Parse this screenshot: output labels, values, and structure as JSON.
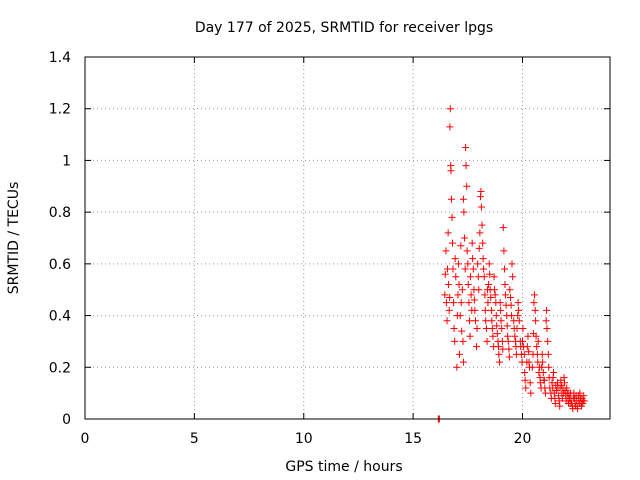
{
  "chart_data": {
    "type": "scatter",
    "title": "Day 177 of 2025, SRMTID for receiver lpgs",
    "xlabel": "GPS time / hours",
    "ylabel": "SRMTID / TECUs",
    "xlim": [
      0,
      24
    ],
    "ylim": [
      0,
      1.4
    ],
    "x_ticks": [
      0,
      5,
      10,
      15,
      20
    ],
    "x_tick_labels": [
      "0",
      "5",
      "10",
      "15",
      "20"
    ],
    "y_ticks": [
      0,
      0.2,
      0.4,
      0.6,
      0.8,
      1.0,
      1.2,
      1.4
    ],
    "y_tick_labels": [
      "0",
      "0.2",
      "0.4",
      "0.6",
      "0.8",
      "1",
      "1.2",
      "1.4"
    ],
    "grid": true,
    "marker": "plus",
    "color": "#ff0000",
    "series": [
      {
        "name": "lpgs",
        "points": [
          [
            16.15,
            0.0
          ],
          [
            16.18,
            0.0
          ],
          [
            16.2,
            0.0
          ],
          [
            16.45,
            0.48
          ],
          [
            16.47,
            0.56
          ],
          [
            16.5,
            0.65
          ],
          [
            16.52,
            0.45
          ],
          [
            16.55,
            0.38
          ],
          [
            16.57,
            0.58
          ],
          [
            16.6,
            0.72
          ],
          [
            16.62,
            0.52
          ],
          [
            16.65,
            0.42
          ],
          [
            16.67,
            0.47
          ],
          [
            16.68,
            1.13
          ],
          [
            16.7,
            1.2
          ],
          [
            16.72,
            0.98
          ],
          [
            16.73,
            0.96
          ],
          [
            16.75,
            0.85
          ],
          [
            16.78,
            0.78
          ],
          [
            16.8,
            0.68
          ],
          [
            16.82,
            0.58
          ],
          [
            16.85,
            0.45
          ],
          [
            16.87,
            0.35
          ],
          [
            16.9,
            0.3
          ],
          [
            16.92,
            0.62
          ],
          [
            16.95,
            0.55
          ],
          [
            17.0,
            0.2
          ],
          [
            17.02,
            0.4
          ],
          [
            17.05,
            0.48
          ],
          [
            17.07,
            0.6
          ],
          [
            17.1,
            0.52
          ],
          [
            17.12,
            0.25
          ],
          [
            17.15,
            0.4
          ],
          [
            17.18,
            0.67
          ],
          [
            17.2,
            0.45
          ],
          [
            17.22,
            0.34
          ],
          [
            17.25,
            0.5
          ],
          [
            17.28,
            0.3
          ],
          [
            17.3,
            0.22
          ],
          [
            17.3,
            0.85
          ],
          [
            17.32,
            0.8
          ],
          [
            17.35,
            0.7
          ],
          [
            17.38,
            0.58
          ],
          [
            17.4,
            1.05
          ],
          [
            17.42,
            0.98
          ],
          [
            17.45,
            0.9
          ],
          [
            17.47,
            0.65
          ],
          [
            17.5,
            0.6
          ],
          [
            17.52,
            0.52
          ],
          [
            17.55,
            0.45
          ],
          [
            17.58,
            0.38
          ],
          [
            17.6,
            0.32
          ],
          [
            17.62,
            0.55
          ],
          [
            17.65,
            0.48
          ],
          [
            17.68,
            0.42
          ],
          [
            17.7,
            0.68
          ],
          [
            17.72,
            0.62
          ],
          [
            17.75,
            0.58
          ],
          [
            17.78,
            0.5
          ],
          [
            17.8,
            0.46
          ],
          [
            17.82,
            0.42
          ],
          [
            17.85,
            0.38
          ],
          [
            17.9,
            0.28
          ],
          [
            17.92,
            0.35
          ],
          [
            17.95,
            0.6
          ],
          [
            17.98,
            0.55
          ],
          [
            18.0,
            0.5
          ],
          [
            18.02,
            0.66
          ],
          [
            18.05,
            0.72
          ],
          [
            18.08,
            0.86
          ],
          [
            18.1,
            0.88
          ],
          [
            18.12,
            0.82
          ],
          [
            18.15,
            0.75
          ],
          [
            18.18,
            0.68
          ],
          [
            18.2,
            0.62
          ],
          [
            18.22,
            0.58
          ],
          [
            18.25,
            0.55
          ],
          [
            18.28,
            0.48
          ],
          [
            18.3,
            0.42
          ],
          [
            18.32,
            0.38
          ],
          [
            18.35,
            0.35
          ],
          [
            18.38,
            0.3
          ],
          [
            18.4,
            0.5
          ],
          [
            18.42,
            0.45
          ],
          [
            18.45,
            0.52
          ],
          [
            18.48,
            0.6
          ],
          [
            18.5,
            0.56
          ],
          [
            18.52,
            0.5
          ],
          [
            18.55,
            0.47
          ],
          [
            18.58,
            0.42
          ],
          [
            18.6,
            0.38
          ],
          [
            18.62,
            0.35
          ],
          [
            18.65,
            0.32
          ],
          [
            18.68,
            0.28
          ],
          [
            18.7,
            0.55
          ],
          [
            18.72,
            0.5
          ],
          [
            18.75,
            0.48
          ],
          [
            18.78,
            0.45
          ],
          [
            18.8,
            0.4
          ],
          [
            18.82,
            0.36
          ],
          [
            18.85,
            0.33
          ],
          [
            18.88,
            0.3
          ],
          [
            18.9,
            0.28
          ],
          [
            18.92,
            0.25
          ],
          [
            18.95,
            0.22
          ],
          [
            18.98,
            0.45
          ],
          [
            19.0,
            0.42
          ],
          [
            19.02,
            0.38
          ],
          [
            19.05,
            0.35
          ],
          [
            19.08,
            0.3
          ],
          [
            19.1,
            0.27
          ],
          [
            19.12,
            0.74
          ],
          [
            19.15,
            0.65
          ],
          [
            19.18,
            0.58
          ],
          [
            19.2,
            0.52
          ],
          [
            19.22,
            0.48
          ],
          [
            19.25,
            0.44
          ],
          [
            19.28,
            0.4
          ],
          [
            19.3,
            0.36
          ],
          [
            19.32,
            0.32
          ],
          [
            19.35,
            0.3
          ],
          [
            19.38,
            0.27
          ],
          [
            19.4,
            0.24
          ],
          [
            19.42,
            0.5
          ],
          [
            19.45,
            0.47
          ],
          [
            19.48,
            0.44
          ],
          [
            19.5,
            0.4
          ],
          [
            19.52,
            0.6
          ],
          [
            19.55,
            0.55
          ],
          [
            19.6,
            0.38
          ],
          [
            19.62,
            0.35
          ],
          [
            19.65,
            0.32
          ],
          [
            19.68,
            0.3
          ],
          [
            19.7,
            0.28
          ],
          [
            19.72,
            0.25
          ],
          [
            19.75,
            0.35
          ],
          [
            19.78,
            0.4
          ],
          [
            19.8,
            0.45
          ],
          [
            19.82,
            0.42
          ],
          [
            19.85,
            0.38
          ],
          [
            19.9,
            0.3
          ],
          [
            19.92,
            0.28
          ],
          [
            19.95,
            0.25
          ],
          [
            19.98,
            0.22
          ],
          [
            20.0,
            0.3
          ],
          [
            20.02,
            0.35
          ],
          [
            20.05,
            0.28
          ],
          [
            20.08,
            0.25
          ],
          [
            20.1,
            0.18
          ],
          [
            20.12,
            0.15
          ],
          [
            20.15,
            0.12
          ],
          [
            20.2,
            0.22
          ],
          [
            20.22,
            0.28
          ],
          [
            20.25,
            0.32
          ],
          [
            20.28,
            0.26
          ],
          [
            20.3,
            0.22
          ],
          [
            20.32,
            0.2
          ],
          [
            20.35,
            0.14
          ],
          [
            20.38,
            0.1
          ],
          [
            20.45,
            0.2
          ],
          [
            20.48,
            0.25
          ],
          [
            20.5,
            0.33
          ],
          [
            20.52,
            0.45
          ],
          [
            20.55,
            0.48
          ],
          [
            20.58,
            0.42
          ],
          [
            20.6,
            0.38
          ],
          [
            20.62,
            0.32
          ],
          [
            20.65,
            0.28
          ],
          [
            20.68,
            0.25
          ],
          [
            20.7,
            0.22
          ],
          [
            20.72,
            0.3
          ],
          [
            20.75,
            0.18
          ],
          [
            20.78,
            0.2
          ],
          [
            20.8,
            0.16
          ],
          [
            20.82,
            0.14
          ],
          [
            20.85,
            0.12
          ],
          [
            20.88,
            0.2
          ],
          [
            20.9,
            0.25
          ],
          [
            20.92,
            0.22
          ],
          [
            20.95,
            0.18
          ],
          [
            20.98,
            0.15
          ],
          [
            21.0,
            0.15
          ],
          [
            21.02,
            0.12
          ],
          [
            21.05,
            0.1
          ],
          [
            21.08,
            0.38
          ],
          [
            21.1,
            0.42
          ],
          [
            21.12,
            0.35
          ],
          [
            21.15,
            0.3
          ],
          [
            21.18,
            0.25
          ],
          [
            21.2,
            0.2
          ],
          [
            21.22,
            0.16
          ],
          [
            21.25,
            0.12
          ],
          [
            21.3,
            0.1
          ],
          [
            21.32,
            0.08
          ],
          [
            21.35,
            0.14
          ],
          [
            21.38,
            0.12
          ],
          [
            21.4,
            0.16
          ],
          [
            21.42,
            0.18
          ],
          [
            21.45,
            0.1
          ],
          [
            21.48,
            0.08
          ],
          [
            21.5,
            0.06
          ],
          [
            21.52,
            0.13
          ],
          [
            21.55,
            0.11
          ],
          [
            21.6,
            0.14
          ],
          [
            21.62,
            0.12
          ],
          [
            21.65,
            0.09
          ],
          [
            21.68,
            0.07
          ],
          [
            21.7,
            0.05
          ],
          [
            21.72,
            0.12
          ],
          [
            21.75,
            0.15
          ],
          [
            21.78,
            0.13
          ],
          [
            21.8,
            0.1
          ],
          [
            21.82,
            0.08
          ],
          [
            21.85,
            0.12
          ],
          [
            21.88,
            0.1
          ],
          [
            21.9,
            0.16
          ],
          [
            21.92,
            0.14
          ],
          [
            21.95,
            0.11
          ],
          [
            21.98,
            0.09
          ],
          [
            22.0,
            0.07
          ],
          [
            22.02,
            0.12
          ],
          [
            22.05,
            0.1
          ],
          [
            22.08,
            0.08
          ],
          [
            22.1,
            0.06
          ],
          [
            22.12,
            0.1
          ],
          [
            22.15,
            0.08
          ],
          [
            22.18,
            0.06
          ],
          [
            22.2,
            0.1
          ],
          [
            22.22,
            0.08
          ],
          [
            22.25,
            0.06
          ],
          [
            22.28,
            0.05
          ],
          [
            22.3,
            0.04
          ],
          [
            22.32,
            0.08
          ],
          [
            22.35,
            0.1
          ],
          [
            22.38,
            0.08
          ],
          [
            22.4,
            0.06
          ],
          [
            22.42,
            0.05
          ],
          [
            22.45,
            0.09
          ],
          [
            22.48,
            0.07
          ],
          [
            22.5,
            0.05
          ],
          [
            22.52,
            0.04
          ],
          [
            22.55,
            0.09
          ],
          [
            22.58,
            0.07
          ],
          [
            22.6,
            0.06
          ],
          [
            22.62,
            0.1
          ],
          [
            22.65,
            0.08
          ],
          [
            22.68,
            0.06
          ],
          [
            22.7,
            0.05
          ],
          [
            22.72,
            0.08
          ],
          [
            22.75,
            0.06
          ],
          [
            22.78,
            0.07
          ],
          [
            22.8,
            0.09
          ],
          [
            22.82,
            0.07
          ]
        ]
      }
    ]
  }
}
